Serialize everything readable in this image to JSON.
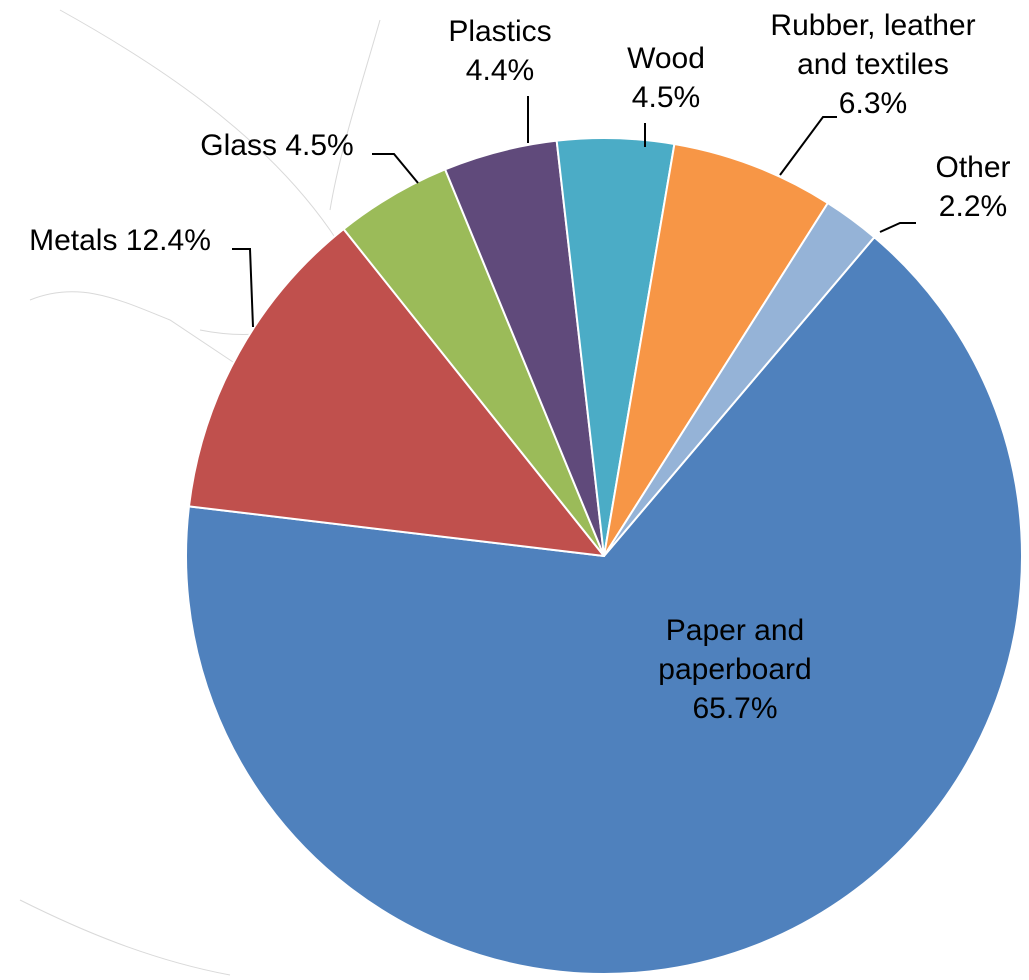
{
  "chart_data": {
    "type": "pie",
    "title": "",
    "slices": [
      {
        "label": "Paper and paperboard",
        "label_lines": [
          "Paper and",
          "paperboard",
          "65.7%"
        ],
        "value": 65.7,
        "color": "#4f81bd"
      },
      {
        "label": "Metals",
        "label_lines": [
          "Metals 12.4%"
        ],
        "value": 12.4,
        "color": "#c0504d"
      },
      {
        "label": "Glass",
        "label_lines": [
          "Glass 4.5%"
        ],
        "value": 4.5,
        "color": "#9bbb59"
      },
      {
        "label": "Plastics",
        "label_lines": [
          "Plastics",
          "4.4%"
        ],
        "value": 4.4,
        "color": "#604a7b"
      },
      {
        "label": "Wood",
        "label_lines": [
          "Wood",
          "4.5%"
        ],
        "value": 4.5,
        "color": "#4bacc6"
      },
      {
        "label": "Rubber, leather and textiles",
        "label_lines": [
          "Rubber, leather",
          "and textiles",
          "6.3%"
        ],
        "value": 6.3,
        "color": "#f79646"
      },
      {
        "label": "Other",
        "label_lines": [
          "Other",
          "2.2%"
        ],
        "value": 2.2,
        "color": "#95b3d7"
      }
    ]
  }
}
